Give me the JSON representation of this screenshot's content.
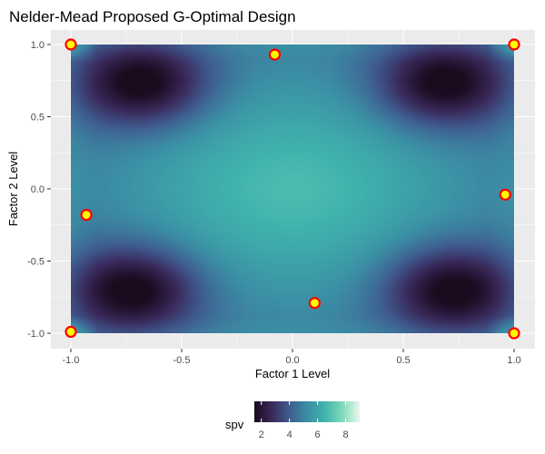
{
  "chart_data": {
    "type": "heatmap",
    "title": "Nelder-Mead Proposed G-Optimal Design",
    "xlabel": "Factor 1 Level",
    "ylabel": "Factor 2 Level",
    "xlim": [
      -1.0,
      1.0
    ],
    "ylim": [
      -1.0,
      1.0
    ],
    "x_ticks": [
      "-1.0",
      "-0.5",
      "0.0",
      "0.5",
      "1.0"
    ],
    "y_ticks": [
      "-1.0",
      "-0.5",
      "0.0",
      "0.5",
      "1.0"
    ],
    "grid": true,
    "fill_variable": "spv",
    "fill_range": [
      1.5,
      9.0
    ],
    "legend": {
      "title": "spv",
      "placement": "bottom",
      "ticks": [
        "2",
        "4",
        "6",
        "8"
      ]
    },
    "colors": {
      "panel_background": "#ebebeb",
      "grid": "#ffffff",
      "point_fill": "#ffff00",
      "point_outline": "#ff0000",
      "scale": [
        "#1c0a1f",
        "#3a2a5c",
        "#3f5d90",
        "#3b8ea4",
        "#3fb3ad",
        "#7fd9b8",
        "#e8f7ed"
      ]
    },
    "design_points": [
      {
        "x": -1.0,
        "y": 1.0
      },
      {
        "x": -0.08,
        "y": 0.93
      },
      {
        "x": 1.0,
        "y": 1.0
      },
      {
        "x": 0.96,
        "y": -0.04
      },
      {
        "x": -0.93,
        "y": -0.18
      },
      {
        "x": 0.1,
        "y": -0.79
      },
      {
        "x": -1.0,
        "y": -0.99
      },
      {
        "x": 1.0,
        "y": -1.0
      }
    ],
    "dark_regions": [
      {
        "x": -0.68,
        "y": 0.73
      },
      {
        "x": 0.68,
        "y": 0.73
      },
      {
        "x": -0.72,
        "y": -0.7
      },
      {
        "x": 0.72,
        "y": -0.7
      }
    ]
  }
}
